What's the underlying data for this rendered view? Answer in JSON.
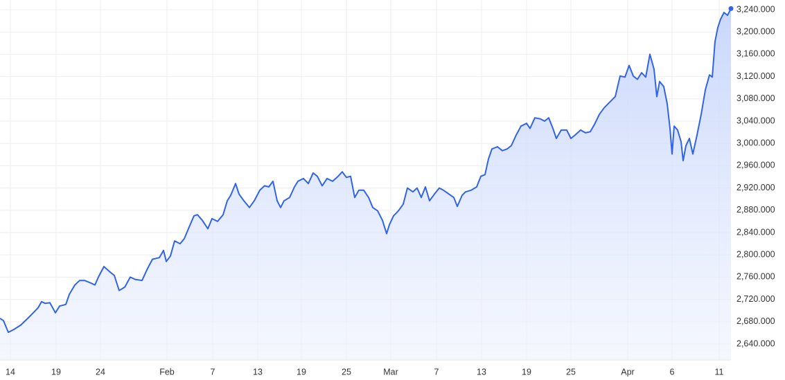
{
  "chart_data": {
    "type": "line",
    "color": "#2f63ea",
    "grid": true,
    "xlim": [
      0,
      1055
    ],
    "ylim": [
      2611.4,
      3257.4
    ],
    "yticks": [
      {
        "value": 2640,
        "label": "2,640.000"
      },
      {
        "value": 2680,
        "label": "2,680.000"
      },
      {
        "value": 2720,
        "label": "2,720.000"
      },
      {
        "value": 2760,
        "label": "2,760.000"
      },
      {
        "value": 2800,
        "label": "2,800.000"
      },
      {
        "value": 2840,
        "label": "2,840.000"
      },
      {
        "value": 2880,
        "label": "2,880.000"
      },
      {
        "value": 2920,
        "label": "2,920.000"
      },
      {
        "value": 2960,
        "label": "2,960.000"
      },
      {
        "value": 3000,
        "label": "3,000.000"
      },
      {
        "value": 3040,
        "label": "3,040.000"
      },
      {
        "value": 3080,
        "label": "3,080.000"
      },
      {
        "value": 3120,
        "label": "3,120.000"
      },
      {
        "value": 3160,
        "label": "3,160.000"
      },
      {
        "value": 3200,
        "label": "3,200.000"
      },
      {
        "value": 3240,
        "label": "3,240.000"
      }
    ],
    "xticks": [
      {
        "value": 15,
        "label": "14"
      },
      {
        "value": 81,
        "label": "19"
      },
      {
        "value": 145,
        "label": "24"
      },
      {
        "value": 241,
        "label": "Feb"
      },
      {
        "value": 307,
        "label": "7"
      },
      {
        "value": 372,
        "label": "13"
      },
      {
        "value": 435,
        "label": "19"
      },
      {
        "value": 500,
        "label": "25"
      },
      {
        "value": 564,
        "label": "Mar"
      },
      {
        "value": 630,
        "label": "7"
      },
      {
        "value": 695,
        "label": "13"
      },
      {
        "value": 760,
        "label": "19"
      },
      {
        "value": 824,
        "label": "25"
      },
      {
        "value": 906,
        "label": "Apr"
      },
      {
        "value": 970,
        "label": "6"
      },
      {
        "value": 1038,
        "label": "11"
      }
    ],
    "x": [
      0,
      5,
      12,
      20,
      30,
      40,
      48,
      55,
      60,
      65,
      72,
      80,
      86,
      95,
      100,
      108,
      115,
      122,
      130,
      137,
      142,
      150,
      158,
      165,
      172,
      180,
      188,
      195,
      205,
      212,
      220,
      230,
      236,
      240,
      246,
      252,
      260,
      266,
      272,
      280,
      285,
      292,
      300,
      306,
      314,
      322,
      328,
      333,
      340,
      345,
      352,
      360,
      367,
      375,
      382,
      388,
      394,
      400,
      405,
      410,
      418,
      425,
      430,
      438,
      445,
      452,
      458,
      465,
      472,
      480,
      488,
      494,
      500,
      506,
      512,
      518,
      525,
      532,
      538,
      545,
      552,
      558,
      562,
      568,
      575,
      582,
      588,
      596,
      602,
      608,
      614,
      620,
      627,
      634,
      640,
      648,
      655,
      660,
      667,
      672,
      680,
      688,
      694,
      700,
      705,
      710,
      718,
      725,
      732,
      738,
      745,
      752,
      760,
      765,
      772,
      780,
      786,
      792,
      798,
      803,
      810,
      818,
      824,
      830,
      838,
      845,
      852,
      858,
      865,
      872,
      880,
      888,
      895,
      902,
      908,
      914,
      920,
      926,
      932,
      938,
      944,
      948,
      952,
      958,
      963,
      967,
      970,
      973,
      978,
      983,
      986,
      990,
      995,
      1000,
      1006,
      1012,
      1018,
      1024,
      1028,
      1032,
      1036,
      1040,
      1045,
      1050,
      1055
    ],
    "values": [
      2686,
      2682,
      2661,
      2666,
      2674,
      2686,
      2696,
      2705,
      2716,
      2713,
      2714,
      2696,
      2708,
      2711,
      2729,
      2746,
      2754,
      2754,
      2750,
      2746,
      2760,
      2779,
      2770,
      2763,
      2736,
      2742,
      2760,
      2756,
      2754,
      2773,
      2792,
      2795,
      2808,
      2788,
      2798,
      2825,
      2820,
      2829,
      2847,
      2870,
      2872,
      2862,
      2847,
      2865,
      2860,
      2872,
      2897,
      2907,
      2928,
      2909,
      2897,
      2885,
      2897,
      2916,
      2924,
      2922,
      2932,
      2897,
      2885,
      2897,
      2903,
      2922,
      2932,
      2937,
      2928,
      2947,
      2941,
      2924,
      2937,
      2932,
      2941,
      2949,
      2939,
      2941,
      2903,
      2916,
      2916,
      2903,
      2885,
      2879,
      2862,
      2838,
      2854,
      2870,
      2879,
      2891,
      2920,
      2913,
      2920,
      2903,
      2922,
      2897,
      2909,
      2920,
      2916,
      2909,
      2903,
      2887,
      2907,
      2913,
      2916,
      2922,
      2941,
      2944,
      2972,
      2990,
      2994,
      2987,
      2990,
      2996,
      3015,
      3031,
      3036,
      3027,
      3046,
      3044,
      3040,
      3046,
      3027,
      3009,
      3024,
      3024,
      3009,
      3015,
      3024,
      3019,
      3021,
      3034,
      3052,
      3064,
      3074,
      3084,
      3121,
      3119,
      3140,
      3121,
      3115,
      3127,
      3119,
      3160,
      3133,
      3084,
      3111,
      3102,
      3071,
      3027,
      2981,
      3031,
      3024,
      3003,
      2969,
      2996,
      3009,
      2981,
      3015,
      3052,
      3096,
      3123,
      3119,
      3183,
      3208,
      3223,
      3235,
      3230,
      3242
    ]
  }
}
